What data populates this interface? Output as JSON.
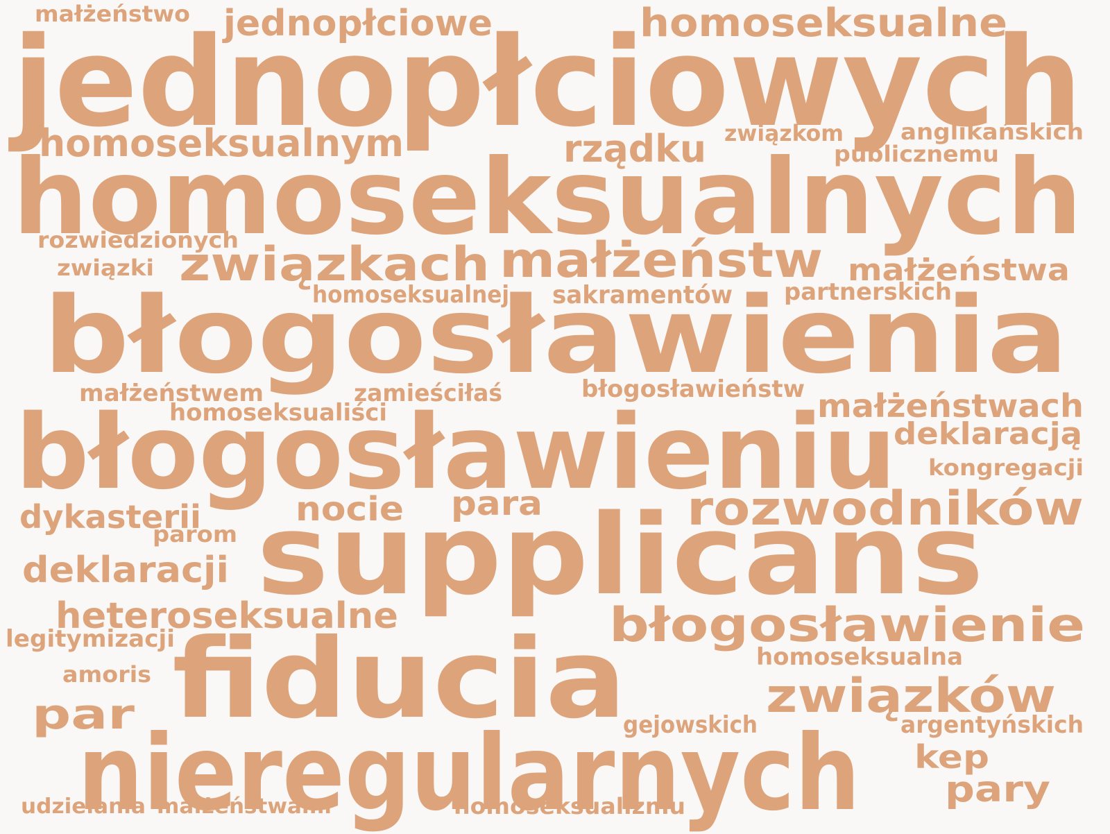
{
  "word_cloud": {
    "color": "#dda47c",
    "background": "#f9f8f6",
    "words": [
      {
        "text": "jednopłciowych"
      },
      {
        "text": "homoseksualnych"
      },
      {
        "text": "błogosławienia"
      },
      {
        "text": "błogosławieniu"
      },
      {
        "text": "supplicans"
      },
      {
        "text": "fiducia"
      },
      {
        "text": "nieregularnych"
      },
      {
        "text": "związkach"
      },
      {
        "text": "małżeństw"
      },
      {
        "text": "rozwodników"
      },
      {
        "text": "błogosławienie"
      },
      {
        "text": "związków"
      },
      {
        "text": "homoseksualne"
      },
      {
        "text": "jednopłciowe"
      },
      {
        "text": "homoseksualnym"
      },
      {
        "text": "rządku"
      },
      {
        "text": "heteroseksualne"
      },
      {
        "text": "deklaracji"
      },
      {
        "text": "par"
      },
      {
        "text": "małżeństwa"
      },
      {
        "text": "nocie"
      },
      {
        "text": "para"
      },
      {
        "text": "dykasterii"
      },
      {
        "text": "deklaracją"
      },
      {
        "text": "pary"
      },
      {
        "text": "kep"
      },
      {
        "text": "małżeństwach"
      },
      {
        "text": "małżeństwo"
      },
      {
        "text": "związkom"
      },
      {
        "text": "anglikańskich"
      },
      {
        "text": "publicznemu"
      },
      {
        "text": "rozwiedzionych"
      },
      {
        "text": "związki"
      },
      {
        "text": "homoseksualnej"
      },
      {
        "text": "sakramentów"
      },
      {
        "text": "partnerskich"
      },
      {
        "text": "małżeństwem"
      },
      {
        "text": "zamieściłaś"
      },
      {
        "text": "błogosławieństw"
      },
      {
        "text": "homoseksualiści"
      },
      {
        "text": "kongregacji"
      },
      {
        "text": "parom"
      },
      {
        "text": "legitymizacji"
      },
      {
        "text": "homoseksualna"
      },
      {
        "text": "amoris"
      },
      {
        "text": "gejowskich"
      },
      {
        "text": "argentyńskich"
      },
      {
        "text": "udzielania"
      },
      {
        "text": "małżeństwami"
      },
      {
        "text": "homoseksualizmu"
      }
    ]
  }
}
